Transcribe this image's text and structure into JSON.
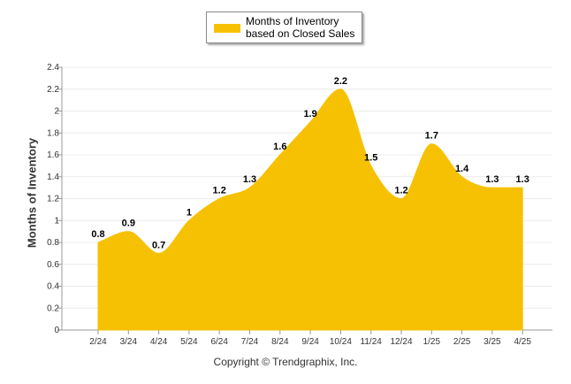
{
  "chart_data": {
    "type": "area",
    "categories": [
      "2/24",
      "3/24",
      "4/24",
      "5/24",
      "6/24",
      "7/24",
      "8/24",
      "9/24",
      "10/24",
      "11/24",
      "12/24",
      "1/25",
      "2/25",
      "3/25",
      "4/25"
    ],
    "series": [
      {
        "name": "Months of Inventory based on Closed Sales",
        "values": [
          0.8,
          0.9,
          0.7,
          1,
          1.2,
          1.3,
          1.6,
          1.9,
          2.2,
          1.5,
          1.2,
          1.7,
          1.4,
          1.3,
          1.3
        ],
        "data_labels": [
          "0.8",
          "0.9",
          "0.7",
          "1",
          "1.2",
          "1.3",
          "1.6",
          "1.9",
          "2.2",
          "1.5",
          "1.2",
          "1.7",
          "1.4",
          "1.3",
          "1.3"
        ]
      }
    ],
    "ylabel": "Months of Inventory",
    "ylim": [
      0,
      2.4
    ],
    "yticks": [
      "0",
      "0.2",
      "0.4",
      "0.6",
      "0.8",
      "1",
      "1.2",
      "1.4",
      "1.6",
      "1.8",
      "2",
      "2.2",
      "2.4"
    ],
    "grid": true,
    "legend_position": "top-center",
    "color": "#f7c103",
    "footer": "Copyright © Trendgraphix, Inc."
  }
}
